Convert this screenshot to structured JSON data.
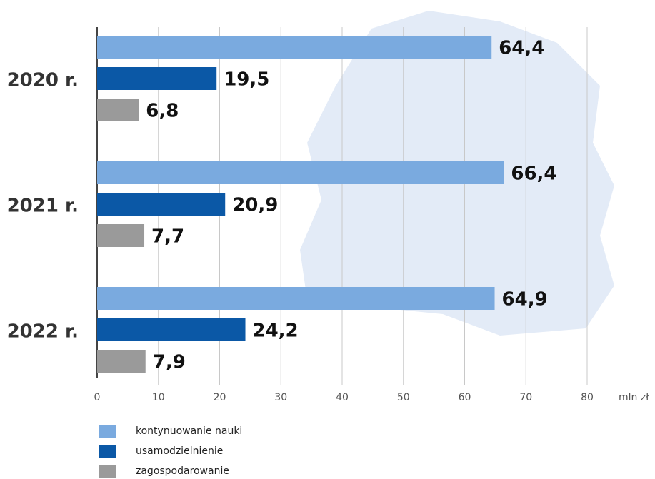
{
  "chart_data": {
    "type": "bar",
    "orientation": "horizontal",
    "categories": [
      "2020 r.",
      "2021 r.",
      "2022 r."
    ],
    "series": [
      {
        "name": "kontynuowanie nauki",
        "color": "#7aaadf",
        "values": [
          64.4,
          66.4,
          64.9
        ],
        "value_labels": [
          "64,4",
          "66,4",
          "64,9"
        ]
      },
      {
        "name": "usamodzielnienie",
        "color": "#0b58a6",
        "values": [
          19.5,
          20.9,
          24.2
        ],
        "value_labels": [
          "19,5",
          "20,9",
          "24,2"
        ]
      },
      {
        "name": "zagospodarowanie",
        "color": "#9a9a9a",
        "values": [
          6.8,
          7.7,
          7.9
        ],
        "value_labels": [
          "6,8",
          "7,7",
          "7,9"
        ]
      }
    ],
    "x_axis_label": "mln zł",
    "xlim": [
      0,
      80
    ],
    "xticks": [
      0,
      10,
      20,
      30,
      40,
      50,
      60,
      70,
      80
    ],
    "grid": true
  }
}
